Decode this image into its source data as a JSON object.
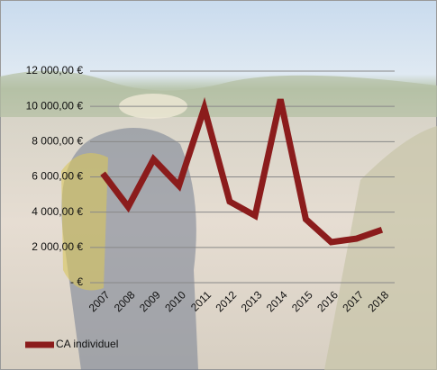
{
  "chart_data": {
    "type": "line",
    "categories": [
      "2007",
      "2008",
      "2009",
      "2010",
      "2011",
      "2012",
      "2013",
      "2014",
      "2015",
      "2016",
      "2017",
      "2018"
    ],
    "series": [
      {
        "name": "CA individuel",
        "color": "#8b1c1c",
        "values": [
          6200,
          4300,
          7000,
          5500,
          9900,
          4600,
          3800,
          10400,
          3600,
          2300,
          2500,
          3000
        ]
      }
    ],
    "ylim": [
      0,
      12000
    ],
    "yticks": [
      {
        "value": 0,
        "label": "-   €"
      },
      {
        "value": 2000,
        "label": "2 000,00 €"
      },
      {
        "value": 4000,
        "label": "4 000,00 €"
      },
      {
        "value": 6000,
        "label": "6 000,00 €"
      },
      {
        "value": 8000,
        "label": "8 000,00 €"
      },
      {
        "value": 10000,
        "label": "10 000,00 €"
      },
      {
        "value": 12000,
        "label": "12 000,00 €"
      }
    ],
    "grid": true,
    "legend": "bottom-left"
  }
}
